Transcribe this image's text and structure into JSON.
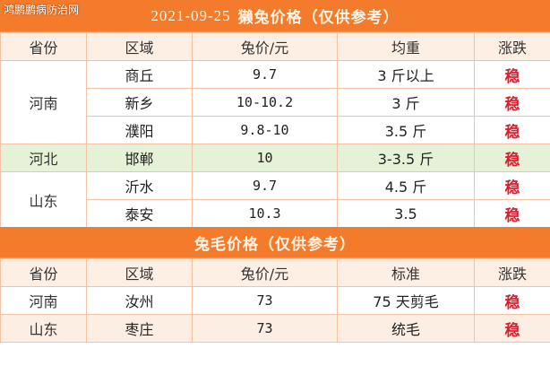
{
  "watermark": "鸿鹏鹏病防治网",
  "rabbit_price": {
    "date": "2021-09-25",
    "title": "獭兔价格（仅供参考）",
    "headers": [
      "省份",
      "区域",
      "兔价/元",
      "均重",
      "涨跌"
    ],
    "groups": [
      {
        "province": "河南",
        "rows": [
          {
            "region": "商丘",
            "price": "9.7",
            "weight": "3 斤以上",
            "trend": "稳"
          },
          {
            "region": "新乡",
            "price": "10-10.2",
            "weight": "3 斤",
            "trend": "稳"
          },
          {
            "region": "濮阳",
            "price": "9.8-10",
            "weight": "3.5 斤",
            "trend": "稳"
          }
        ]
      },
      {
        "province": "河北",
        "rows": [
          {
            "region": "邯郸",
            "price": "10",
            "weight": "3-3.5 斤",
            "trend": "稳"
          }
        ]
      },
      {
        "province": "山东",
        "rows": [
          {
            "region": "沂水",
            "price": "9.7",
            "weight": "4.5 斤",
            "trend": "稳"
          },
          {
            "region": "泰安",
            "price": "10.3",
            "weight": "3.5",
            "trend": "稳"
          }
        ]
      }
    ]
  },
  "fur_price": {
    "title": "兔毛价格（仅供参考）",
    "headers": [
      "省份",
      "区域",
      "兔价/元",
      "标准",
      "涨跌"
    ],
    "rows": [
      {
        "province": "河南",
        "region": "汝州",
        "price": "73",
        "standard": "75 天剪毛",
        "trend": "稳"
      },
      {
        "province": "山东",
        "region": "枣庄",
        "price": "73",
        "standard": "统毛",
        "trend": "稳"
      }
    ]
  },
  "colors": {
    "title_bar": "#f47b2c",
    "header_bg": "#fdefe3",
    "trend": "#d8202e",
    "hebei_row": "#e6f2d8"
  }
}
